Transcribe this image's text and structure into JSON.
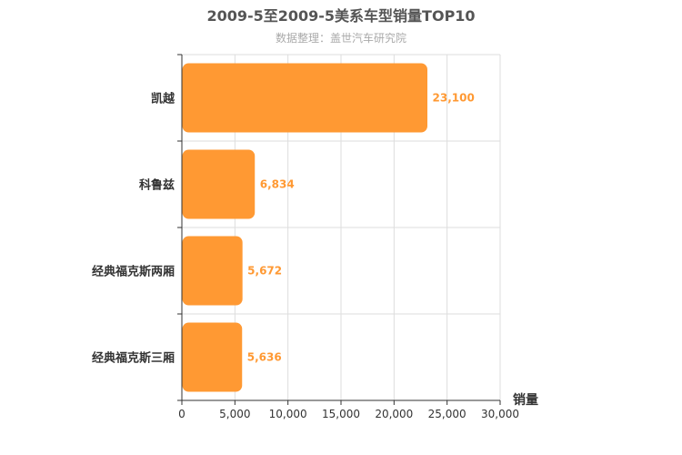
{
  "chart_data": {
    "type": "bar",
    "orientation": "horizontal",
    "title": "2009-5至2009-5美系车型销量TOP10",
    "subtitle": "数据整理：盖世汽车研究院",
    "xlabel": "销量",
    "categories": [
      "凯越",
      "科鲁兹",
      "经典福克斯两厢",
      "经典福克斯三厢"
    ],
    "values": [
      23100,
      6834,
      5672,
      5636
    ],
    "data_labels": [
      "23,100",
      "6,834",
      "5,672",
      "5,636"
    ],
    "xlim": [
      0,
      30000
    ],
    "xticks": [
      0,
      5000,
      10000,
      15000,
      20000,
      25000,
      30000
    ],
    "xtick_labels": [
      "0",
      "5,000",
      "10,000",
      "15,000",
      "20,000",
      "25,000",
      "30,000"
    ],
    "grid": true,
    "bar_color": "#ff9933",
    "label_color": "#ff9933"
  }
}
